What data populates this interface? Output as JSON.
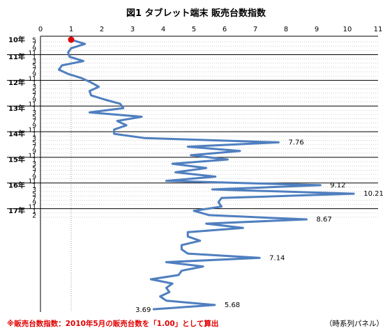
{
  "chart_data": {
    "type": "line",
    "title": "図1 タブレット端末 販売台数指数",
    "orientation": "horizontal-values, vertical-time",
    "x_ticks": [
      "0",
      "1",
      "2",
      "3",
      "4",
      "5",
      "6",
      "7",
      "8",
      "9",
      "10",
      "11"
    ],
    "xlim": [
      0,
      11
    ],
    "grid": "horizontal lines at each year start",
    "years": [
      {
        "label": "10年",
        "months": [
          "5",
          "7",
          "9",
          "11"
        ]
      },
      {
        "label": "11年",
        "months": [
          "1",
          "3",
          "5",
          "7",
          "9",
          "11"
        ]
      },
      {
        "label": "12年",
        "months": [
          "1",
          "3",
          "5",
          "7",
          "9",
          "11"
        ]
      },
      {
        "label": "13年",
        "months": [
          "1",
          "3",
          "5",
          "7",
          "9",
          "11"
        ]
      },
      {
        "label": "14年",
        "months": [
          "1",
          "3",
          "5",
          "7",
          "9",
          "11"
        ]
      },
      {
        "label": "15年",
        "months": [
          "1",
          "3",
          "5",
          "7",
          "9",
          "11"
        ]
      },
      {
        "label": "16年",
        "months": [
          "1",
          "3",
          "5",
          "7",
          "9",
          "11"
        ]
      },
      {
        "label": "17年",
        "months": [
          "1",
          "2"
        ]
      }
    ],
    "series": [
      {
        "color": "#4f7fbf",
        "values": [
          1.0,
          1.45,
          1.0,
          0.9,
          0.95,
          1.4,
          0.7,
          0.6,
          0.9,
          1.35,
          1.65,
          1.9,
          1.6,
          1.65,
          2.1,
          2.6,
          2.7,
          1.6,
          3.3,
          2.5,
          2.8,
          2.4,
          2.4,
          3.4,
          7.76,
          4.8,
          6.5,
          4.9,
          6.1,
          4.3,
          5.4,
          4.4,
          5.7,
          4.1,
          9.12,
          5.6,
          10.21,
          5.9,
          5.8,
          5.9,
          5.0,
          5.5,
          8.67,
          5.4,
          6.6,
          4.8,
          4.8,
          5.2,
          4.6,
          4.6,
          4.8,
          7.14,
          4.1,
          5.3,
          4.6,
          4.5,
          3.6,
          4.3,
          4.1,
          4.2,
          3.9,
          4.1,
          5.68,
          3.69
        ]
      }
    ],
    "start_marker": {
      "x": 1.0,
      "color": "#e00000"
    },
    "data_labels": [
      {
        "text": "7.76",
        "index": 24
      },
      {
        "text": "9.12",
        "index": 34
      },
      {
        "text": "10.21",
        "index": 36
      },
      {
        "text": "8.67",
        "index": 42
      },
      {
        "text": "7.14",
        "index": 51
      },
      {
        "text": "5.68",
        "index": 62
      },
      {
        "text": "3.69",
        "index": 63
      }
    ]
  },
  "note": "※販売台数指数：2010年5月の販売台数を「1.00」として算出",
  "caption": "（時系列パネル）"
}
